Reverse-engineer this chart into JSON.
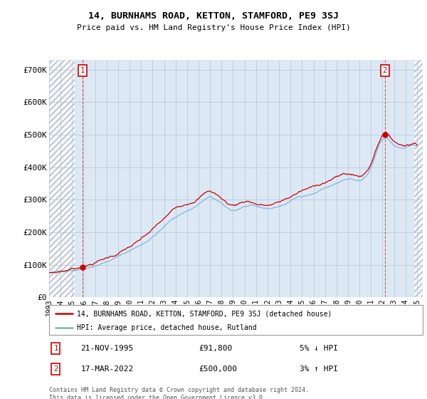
{
  "title": "14, BURNHAMS ROAD, KETTON, STAMFORD, PE9 3SJ",
  "subtitle": "Price paid vs. HM Land Registry's House Price Index (HPI)",
  "ylabel_ticks": [
    "£0",
    "£100K",
    "£200K",
    "£300K",
    "£400K",
    "£500K",
    "£600K",
    "£700K"
  ],
  "ytick_values": [
    0,
    100000,
    200000,
    300000,
    400000,
    500000,
    600000,
    700000
  ],
  "ylim": [
    0,
    730000
  ],
  "xlim_start": 1993.0,
  "xlim_end": 2025.5,
  "hpi_color": "#7bafd4",
  "price_color": "#cc0000",
  "bg_color": "#dce9f5",
  "hatch_color": "#aaaaaa",
  "grid_color": "#b0c4d8",
  "sale1_x": 1995.9,
  "sale1_y": 91800,
  "sale2_x": 2022.21,
  "sale2_y": 500000,
  "sale1_date": "21-NOV-1995",
  "sale1_price": "£91,800",
  "sale1_hpi": "5% ↓ HPI",
  "sale2_date": "17-MAR-2022",
  "sale2_price": "£500,000",
  "sale2_hpi": "3% ↑ HPI",
  "legend_line1": "14, BURNHAMS ROAD, KETTON, STAMFORD, PE9 3SJ (detached house)",
  "legend_line2": "HPI: Average price, detached house, Rutland",
  "footer": "Contains HM Land Registry data © Crown copyright and database right 2024.\nThis data is licensed under the Open Government Licence v3.0.",
  "xticks": [
    1993,
    1994,
    1995,
    1996,
    1997,
    1998,
    1999,
    2000,
    2001,
    2002,
    2003,
    2004,
    2005,
    2006,
    2007,
    2008,
    2009,
    2010,
    2011,
    2012,
    2013,
    2014,
    2015,
    2016,
    2017,
    2018,
    2019,
    2020,
    2021,
    2022,
    2023,
    2024,
    2025
  ]
}
